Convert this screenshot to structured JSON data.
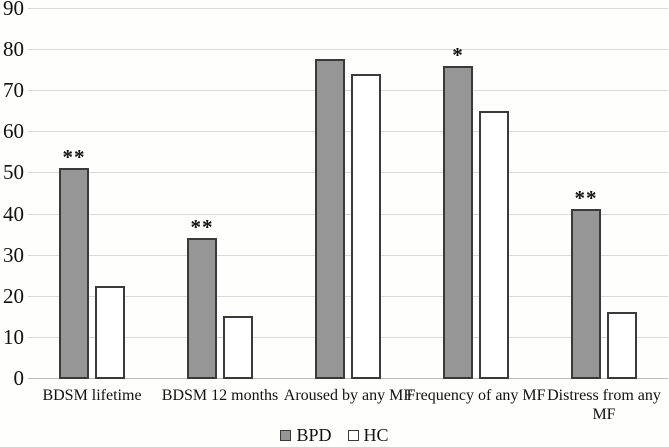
{
  "figure": {
    "background": "#fefefd"
  },
  "chart_data": {
    "type": "bar",
    "title": "",
    "xlabel": "",
    "ylabel": "",
    "categories": [
      "BDSM lifetime",
      "BDSM 12 months",
      "Aroused by any MF",
      "Frequency of any MF",
      "Distress from any MF"
    ],
    "series": [
      {
        "name": "BPD",
        "color": "#969696",
        "border_color": "#3a3a3a",
        "values": [
          51,
          34,
          77.5,
          76,
          41
        ]
      },
      {
        "name": "HC",
        "color": "#ffffff",
        "border_color": "#3a3a3a",
        "values": [
          22.5,
          15,
          74,
          65,
          16
        ]
      }
    ],
    "significance_markers": {
      "on_series": "BPD",
      "labels": [
        "**",
        "**",
        "",
        "*",
        "**"
      ]
    },
    "ylim": [
      0,
      90
    ],
    "yticks": [
      0,
      10,
      20,
      30,
      40,
      50,
      60,
      70,
      80,
      90
    ],
    "grid": true,
    "gridline_color": "#d9d9d9",
    "axis_line_color": "#bfbfbf",
    "legend_position": "bottom",
    "x_label_wrap": [
      false,
      false,
      false,
      false,
      true
    ]
  }
}
